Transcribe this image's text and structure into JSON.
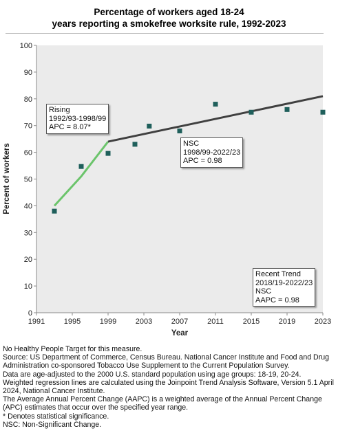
{
  "title_line1": "Percentage of workers aged 18-24",
  "title_line2": "years reporting a smokefree worksite rule, 1992-2023",
  "chart_data": {
    "type": "scatter",
    "title": "Percentage of workers aged 18-24 years reporting a smokefree worksite rule, 1992-2023",
    "xlabel": "Year",
    "ylabel": "Percent of workers",
    "xlim": [
      1991,
      2023
    ],
    "ylim": [
      0,
      100
    ],
    "x_ticks": [
      1991,
      1995,
      1999,
      2003,
      2007,
      2011,
      2015,
      2019,
      2023
    ],
    "y_ticks": [
      0,
      10,
      20,
      30,
      40,
      50,
      60,
      70,
      80,
      90,
      100
    ],
    "grid": false,
    "series": [
      {
        "type": "scatter",
        "color": "#1f5f5b",
        "x": [
          1993,
          1996,
          1999,
          2002,
          2003.6,
          2007,
          2011,
          2015,
          2019,
          2023
        ],
        "y": [
          38,
          54.7,
          59.6,
          63,
          69.8,
          68,
          78,
          75,
          76,
          75
        ]
      },
      {
        "type": "line",
        "color": "#6bc46b",
        "x": [
          1993,
          1996,
          1999
        ],
        "y": [
          40,
          51,
          64
        ]
      },
      {
        "type": "line",
        "color": "#404040",
        "x": [
          1999,
          2023
        ],
        "y": [
          64,
          81
        ]
      }
    ],
    "annotations": [
      {
        "lines": [
          "Rising",
          "1992/93-1998/99",
          "APC =  8.07*"
        ]
      },
      {
        "lines": [
          "NSC",
          "1998/99-2022/23",
          "APC =  0.98"
        ]
      },
      {
        "lines": [
          "Recent Trend",
          "2018/19-2022/23",
          "NSC",
          "AAPC =  0.98"
        ]
      }
    ]
  },
  "notes": [
    "No Healthy People Target for this measure.",
    "Source: US Department of Commerce, Census Bureau. National Cancer Institute and Food and Drug Administration co-sponsored Tobacco Use Supplement to the Current Population Survey.",
    "Data are age-adjusted to the 2000 U.S. standard population using age groups: 18-19, 20-24.",
    "Weighted regression lines are calculated using the Joinpoint Trend Analysis Software, Version 5.1 April 2024, National Cancer Institute.",
    "The Average Annual Percent Change (AAPC) is a weighted average of the Annual Percent Change (APC) estimates that occur over the specified year range.",
    "* Denotes statistical significance.",
    "NSC: Non-Significant Change."
  ]
}
